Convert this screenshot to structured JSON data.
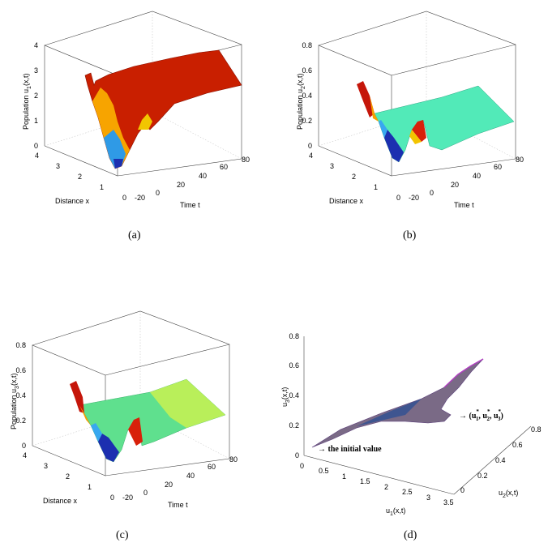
{
  "chart_data": [
    {
      "id": "a",
      "type": "surface3d",
      "caption": "(a)",
      "zlabel_main": "Population u",
      "zlabel_sub": "1",
      "zlabel_rest": "(x,t)",
      "xlabel": "Distance x",
      "ylabel": "Time t",
      "x_ticks": [
        "0",
        "1",
        "2",
        "3",
        "4"
      ],
      "t_ticks": [
        "-20",
        "0",
        "20",
        "40",
        "60",
        "80"
      ],
      "z_ticks": [
        "0",
        "1",
        "2",
        "3",
        "4"
      ],
      "zlim": [
        0,
        4
      ],
      "steady_value": 2.3
    },
    {
      "id": "b",
      "type": "surface3d",
      "caption": "(b)",
      "zlabel_main": "Population u",
      "zlabel_sub": "2",
      "zlabel_rest": "(x,t)",
      "xlabel": "Distance x",
      "ylabel": "Time t",
      "x_ticks": [
        "0",
        "1",
        "2",
        "3",
        "4"
      ],
      "t_ticks": [
        "-20",
        "0",
        "20",
        "40",
        "60",
        "80"
      ],
      "z_ticks": [
        "0",
        "0.2",
        "0.4",
        "0.6",
        "0.8"
      ],
      "zlim": [
        0,
        0.8
      ],
      "steady_value": 0.27
    },
    {
      "id": "c",
      "type": "surface3d",
      "caption": "(c)",
      "zlabel_main": "Population u",
      "zlabel_sub": "3",
      "zlabel_rest": "(x,t)",
      "xlabel": "Distance x",
      "ylabel": "Time t",
      "x_ticks": [
        "0",
        "1",
        "2",
        "3",
        "4"
      ],
      "t_ticks": [
        "-20",
        "0",
        "20",
        "40",
        "60",
        "80"
      ],
      "z_ticks": [
        "0",
        "0.2",
        "0.4",
        "0.6",
        "0.8"
      ],
      "zlim": [
        0,
        0.8
      ],
      "steady_value": 0.3
    },
    {
      "id": "d",
      "type": "phase3d",
      "caption": "(d)",
      "x_ticks": [
        "0",
        "0.5",
        "1",
        "1.5",
        "2",
        "2.5",
        "3",
        "3.5"
      ],
      "y_ticks": [
        "0",
        "0.2",
        "0.4",
        "0.6",
        "0.8"
      ],
      "z_ticks": [
        "0",
        "0.2",
        "0.4",
        "0.6",
        "0.8"
      ],
      "xlabel_main": "u",
      "xlabel_sub": "1",
      "xlabel_rest": "(x,t)",
      "ylabel_main": "u",
      "ylabel_sub": "2",
      "ylabel_rest": "(x,t)",
      "zlabel_main": "u",
      "zlabel_sub": "3",
      "zlabel_rest": "(x,t)",
      "annotation_equilibrium": "→ (u",
      "annotation_equilibrium_items": [
        "1",
        "2",
        "3"
      ],
      "annotation_initial": "→ the initial value"
    }
  ]
}
